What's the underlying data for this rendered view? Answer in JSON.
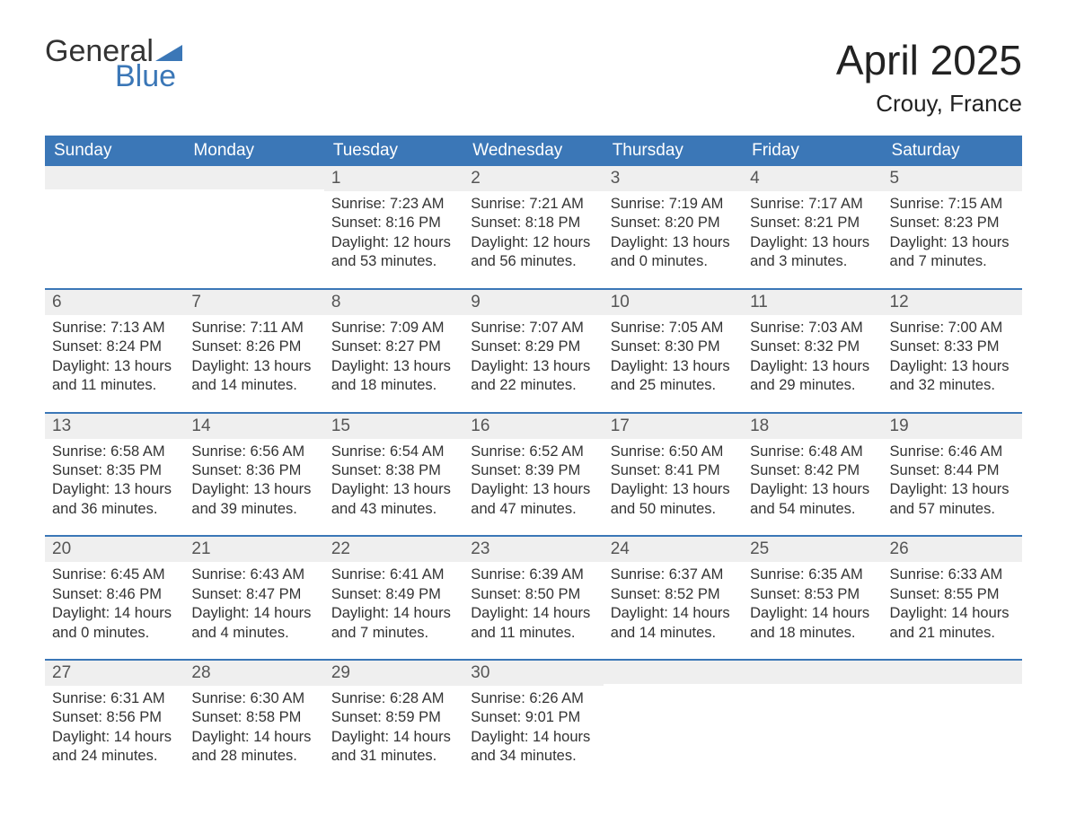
{
  "brand": {
    "word1": "General",
    "word2": "Blue",
    "accent": "#3b77b7",
    "text": "#333333"
  },
  "title": "April 2025",
  "location": "Crouy, France",
  "colors": {
    "header_bg": "#3b77b7",
    "header_text": "#ffffff",
    "daynum_bg": "#efefef",
    "week_border": "#3b77b7",
    "body_text": "#333333",
    "page_bg": "#ffffff"
  },
  "fonts": {
    "title_size": 46,
    "location_size": 26,
    "dow_size": 19,
    "daynum_size": 19,
    "body_size": 16.5
  },
  "days_of_week": [
    "Sunday",
    "Monday",
    "Tuesday",
    "Wednesday",
    "Thursday",
    "Friday",
    "Saturday"
  ],
  "weeks": [
    [
      {
        "n": "",
        "sunrise": "",
        "sunset": "",
        "daylight": ""
      },
      {
        "n": "",
        "sunrise": "",
        "sunset": "",
        "daylight": ""
      },
      {
        "n": "1",
        "sunrise": "7:23 AM",
        "sunset": "8:16 PM",
        "daylight": "12 hours and 53 minutes."
      },
      {
        "n": "2",
        "sunrise": "7:21 AM",
        "sunset": "8:18 PM",
        "daylight": "12 hours and 56 minutes."
      },
      {
        "n": "3",
        "sunrise": "7:19 AM",
        "sunset": "8:20 PM",
        "daylight": "13 hours and 0 minutes."
      },
      {
        "n": "4",
        "sunrise": "7:17 AM",
        "sunset": "8:21 PM",
        "daylight": "13 hours and 3 minutes."
      },
      {
        "n": "5",
        "sunrise": "7:15 AM",
        "sunset": "8:23 PM",
        "daylight": "13 hours and 7 minutes."
      }
    ],
    [
      {
        "n": "6",
        "sunrise": "7:13 AM",
        "sunset": "8:24 PM",
        "daylight": "13 hours and 11 minutes."
      },
      {
        "n": "7",
        "sunrise": "7:11 AM",
        "sunset": "8:26 PM",
        "daylight": "13 hours and 14 minutes."
      },
      {
        "n": "8",
        "sunrise": "7:09 AM",
        "sunset": "8:27 PM",
        "daylight": "13 hours and 18 minutes."
      },
      {
        "n": "9",
        "sunrise": "7:07 AM",
        "sunset": "8:29 PM",
        "daylight": "13 hours and 22 minutes."
      },
      {
        "n": "10",
        "sunrise": "7:05 AM",
        "sunset": "8:30 PM",
        "daylight": "13 hours and 25 minutes."
      },
      {
        "n": "11",
        "sunrise": "7:03 AM",
        "sunset": "8:32 PM",
        "daylight": "13 hours and 29 minutes."
      },
      {
        "n": "12",
        "sunrise": "7:00 AM",
        "sunset": "8:33 PM",
        "daylight": "13 hours and 32 minutes."
      }
    ],
    [
      {
        "n": "13",
        "sunrise": "6:58 AM",
        "sunset": "8:35 PM",
        "daylight": "13 hours and 36 minutes."
      },
      {
        "n": "14",
        "sunrise": "6:56 AM",
        "sunset": "8:36 PM",
        "daylight": "13 hours and 39 minutes."
      },
      {
        "n": "15",
        "sunrise": "6:54 AM",
        "sunset": "8:38 PM",
        "daylight": "13 hours and 43 minutes."
      },
      {
        "n": "16",
        "sunrise": "6:52 AM",
        "sunset": "8:39 PM",
        "daylight": "13 hours and 47 minutes."
      },
      {
        "n": "17",
        "sunrise": "6:50 AM",
        "sunset": "8:41 PM",
        "daylight": "13 hours and 50 minutes."
      },
      {
        "n": "18",
        "sunrise": "6:48 AM",
        "sunset": "8:42 PM",
        "daylight": "13 hours and 54 minutes."
      },
      {
        "n": "19",
        "sunrise": "6:46 AM",
        "sunset": "8:44 PM",
        "daylight": "13 hours and 57 minutes."
      }
    ],
    [
      {
        "n": "20",
        "sunrise": "6:45 AM",
        "sunset": "8:46 PM",
        "daylight": "14 hours and 0 minutes."
      },
      {
        "n": "21",
        "sunrise": "6:43 AM",
        "sunset": "8:47 PM",
        "daylight": "14 hours and 4 minutes."
      },
      {
        "n": "22",
        "sunrise": "6:41 AM",
        "sunset": "8:49 PM",
        "daylight": "14 hours and 7 minutes."
      },
      {
        "n": "23",
        "sunrise": "6:39 AM",
        "sunset": "8:50 PM",
        "daylight": "14 hours and 11 minutes."
      },
      {
        "n": "24",
        "sunrise": "6:37 AM",
        "sunset": "8:52 PM",
        "daylight": "14 hours and 14 minutes."
      },
      {
        "n": "25",
        "sunrise": "6:35 AM",
        "sunset": "8:53 PM",
        "daylight": "14 hours and 18 minutes."
      },
      {
        "n": "26",
        "sunrise": "6:33 AM",
        "sunset": "8:55 PM",
        "daylight": "14 hours and 21 minutes."
      }
    ],
    [
      {
        "n": "27",
        "sunrise": "6:31 AM",
        "sunset": "8:56 PM",
        "daylight": "14 hours and 24 minutes."
      },
      {
        "n": "28",
        "sunrise": "6:30 AM",
        "sunset": "8:58 PM",
        "daylight": "14 hours and 28 minutes."
      },
      {
        "n": "29",
        "sunrise": "6:28 AM",
        "sunset": "8:59 PM",
        "daylight": "14 hours and 31 minutes."
      },
      {
        "n": "30",
        "sunrise": "6:26 AM",
        "sunset": "9:01 PM",
        "daylight": "14 hours and 34 minutes."
      },
      {
        "n": "",
        "sunrise": "",
        "sunset": "",
        "daylight": ""
      },
      {
        "n": "",
        "sunrise": "",
        "sunset": "",
        "daylight": ""
      },
      {
        "n": "",
        "sunrise": "",
        "sunset": "",
        "daylight": ""
      }
    ]
  ],
  "labels": {
    "sunrise": "Sunrise: ",
    "sunset": "Sunset: ",
    "daylight": "Daylight: "
  }
}
